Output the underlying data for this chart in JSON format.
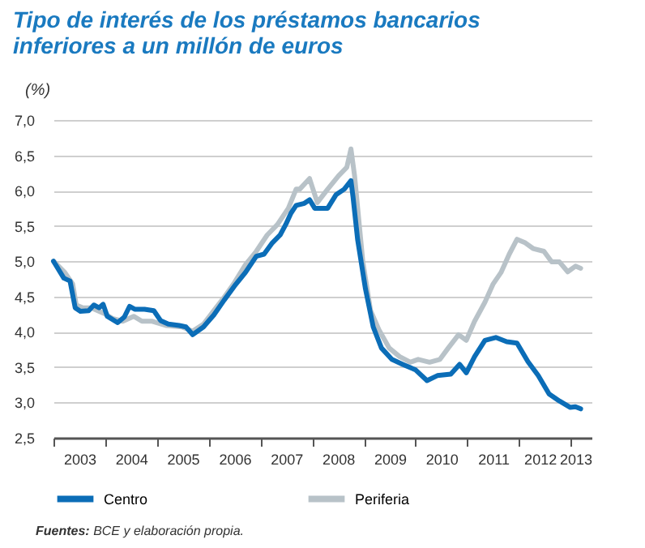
{
  "chart_data": {
    "type": "line",
    "title": "Tipo de interés de los préstamos bancarios inferiores a un millón de euros",
    "ylabel": "(%)",
    "xlim": [
      2003,
      2013.4
    ],
    "xticks": [
      {
        "value": 2003.5,
        "label": "2003"
      },
      {
        "value": 2004.5,
        "label": "2004"
      },
      {
        "value": 2005.5,
        "label": "2005"
      },
      {
        "value": 2006.5,
        "label": "2006"
      },
      {
        "value": 2007.5,
        "label": "2007"
      },
      {
        "value": 2008.5,
        "label": "2008"
      },
      {
        "value": 2009.5,
        "label": "2009"
      },
      {
        "value": 2010.5,
        "label": "2010"
      },
      {
        "value": 2011.5,
        "label": "2011"
      },
      {
        "value": 2012.4,
        "label": "2012"
      },
      {
        "value": 2013.4,
        "label": "2013"
      },
      {
        "value": 2003,
        "label": null
      },
      {
        "value": 2004,
        "label": null
      },
      {
        "value": 2005,
        "label": null
      },
      {
        "value": 2006,
        "label": null
      },
      {
        "value": 2007,
        "label": null
      },
      {
        "value": 2008,
        "label": null
      },
      {
        "value": 2009,
        "label": null
      },
      {
        "value": 2010,
        "label": null
      },
      {
        "value": 2011,
        "label": null
      },
      {
        "value": 2012,
        "label": null
      },
      {
        "value": 2013,
        "label": null
      }
    ],
    "ylim": [
      2.5,
      7.0
    ],
    "yticks": [
      {
        "value": 2.5,
        "label": "2,5"
      },
      {
        "value": 3.0,
        "label": "3,0"
      },
      {
        "value": 3.5,
        "label": "3,5"
      },
      {
        "value": 4.0,
        "label": "4,0"
      },
      {
        "value": 4.5,
        "label": "4,5"
      },
      {
        "value": 5.0,
        "label": "5,0"
      },
      {
        "value": 5.5,
        "label": "5,5"
      },
      {
        "value": 6.0,
        "label": "6,0"
      },
      {
        "value": 6.5,
        "label": "6,5"
      },
      {
        "value": 7.0,
        "label": "7,0"
      }
    ],
    "grid": "y",
    "legend": "bottom",
    "line_style": "solid",
    "marker": "none",
    "series": [
      {
        "name": "Periferia",
        "color": "#b8c2c8",
        "x": [
          2003.0,
          2003.22,
          2003.37,
          2003.44,
          2003.57,
          2003.73,
          2003.98,
          2004.14,
          2004.34,
          2004.55,
          2004.71,
          2004.91,
          2005.17,
          2005.48,
          2005.69,
          2005.9,
          2006.1,
          2006.3,
          2006.5,
          2006.71,
          2006.92,
          2007.13,
          2007.33,
          2007.54,
          2007.69,
          2007.76,
          2007.95,
          2008.1,
          2008.3,
          2008.51,
          2008.67,
          2008.75,
          2008.82,
          2008.98,
          2009.13,
          2009.29,
          2009.49,
          2009.69,
          2009.9,
          2010.05,
          2010.27,
          2010.47,
          2010.63,
          2010.83,
          2010.98,
          2011.14,
          2011.34,
          2011.5,
          2011.65,
          2011.81,
          2011.96,
          2012.12,
          2012.27,
          2012.48,
          2012.63,
          2012.78,
          2012.94,
          2013.09,
          2013.19
        ],
        "values": [
          5.0,
          4.84,
          4.68,
          4.38,
          4.34,
          4.34,
          4.26,
          4.19,
          4.15,
          4.22,
          4.15,
          4.15,
          4.09,
          4.07,
          4.01,
          4.11,
          4.3,
          4.49,
          4.7,
          4.95,
          5.14,
          5.37,
          5.52,
          5.75,
          6.02,
          6.02,
          6.17,
          5.83,
          6.02,
          6.21,
          6.33,
          6.59,
          6.21,
          4.99,
          4.3,
          4.03,
          3.77,
          3.65,
          3.57,
          3.61,
          3.57,
          3.61,
          3.77,
          3.96,
          3.88,
          4.15,
          4.42,
          4.68,
          4.84,
          5.1,
          5.31,
          5.26,
          5.18,
          5.14,
          4.99,
          4.99,
          4.85,
          4.93,
          4.9
        ]
      },
      {
        "name": "Centro",
        "color": "#0b6db7",
        "x": [
          2003.0,
          2003.2,
          2003.32,
          2003.37,
          2003.42,
          2003.52,
          2003.68,
          2003.78,
          2003.88,
          2003.96,
          2004.04,
          2004.24,
          2004.37,
          2004.47,
          2004.57,
          2004.76,
          2004.94,
          2005.07,
          2005.22,
          2005.43,
          2005.56,
          2005.69,
          2005.9,
          2006.1,
          2006.3,
          2006.5,
          2006.71,
          2006.92,
          2007.07,
          2007.23,
          2007.38,
          2007.49,
          2007.59,
          2007.69,
          2007.85,
          2007.95,
          2008.05,
          2008.3,
          2008.46,
          2008.62,
          2008.75,
          2008.79,
          2008.88,
          2009.03,
          2009.18,
          2009.34,
          2009.54,
          2009.75,
          2010.0,
          2010.22,
          2010.42,
          2010.68,
          2010.85,
          2010.98,
          2011.14,
          2011.34,
          2011.55,
          2011.76,
          2011.96,
          2012.17,
          2012.37,
          2012.58,
          2012.78,
          2012.99,
          2013.09,
          2013.19
        ],
        "values": [
          5.0,
          4.76,
          4.72,
          4.53,
          4.34,
          4.29,
          4.3,
          4.38,
          4.34,
          4.39,
          4.22,
          4.13,
          4.21,
          4.36,
          4.32,
          4.32,
          4.3,
          4.16,
          4.11,
          4.09,
          4.07,
          3.96,
          4.07,
          4.24,
          4.45,
          4.65,
          4.84,
          5.07,
          5.1,
          5.26,
          5.37,
          5.52,
          5.68,
          5.79,
          5.82,
          5.87,
          5.75,
          5.75,
          5.94,
          6.02,
          6.14,
          5.91,
          5.3,
          4.61,
          4.07,
          3.77,
          3.61,
          3.54,
          3.46,
          3.31,
          3.38,
          3.4,
          3.54,
          3.42,
          3.65,
          3.88,
          3.92,
          3.86,
          3.84,
          3.58,
          3.38,
          3.12,
          3.02,
          2.93,
          2.94,
          2.91
        ]
      }
    ],
    "annotations": [
      "Fuentes: BCE y elaboración propia."
    ]
  }
}
